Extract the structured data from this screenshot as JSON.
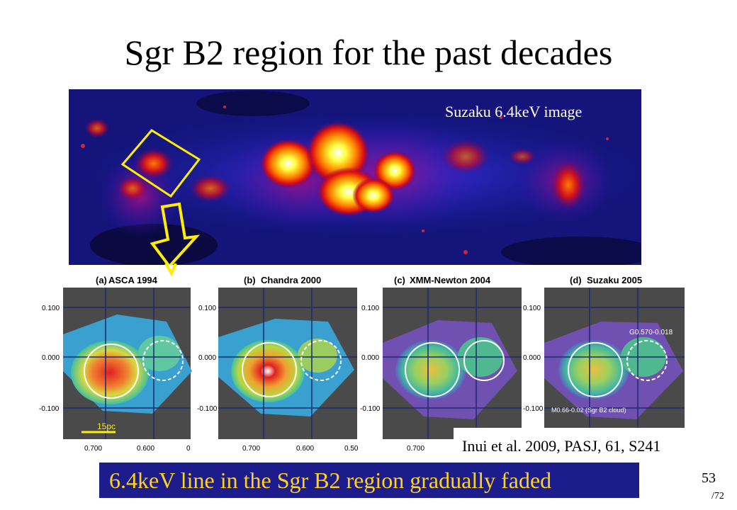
{
  "slide": {
    "title": "Sgr B2 region for the past decades",
    "image_label": "Suzaku 6.4keV image",
    "credit": "Inui et al. 2009, PASJ, 61, S241",
    "conclusion": "6.4keV line in the Sgr B2 region gradually faded",
    "page_number": "53",
    "page_total": "/72"
  },
  "panels": [
    {
      "label": "(a)",
      "mission": "ASCA 1994",
      "yticks": [
        "0.100",
        "0.000",
        "-0.100"
      ],
      "xticks": [
        "0.700",
        "0.600",
        "0"
      ],
      "scalebar": "15pc",
      "source_name": "",
      "cloud_name": ""
    },
    {
      "label": "(b)",
      "mission": "Chandra 2000",
      "yticks": [
        "0.100",
        "0.000",
        "-0.100"
      ],
      "xticks": [
        "0.700",
        "0.600",
        "0.50"
      ],
      "scalebar": "",
      "source_name": "",
      "cloud_name": ""
    },
    {
      "label": "(c)",
      "mission": "XMM-Newton 2004",
      "yticks": [
        "0.100",
        "0.000",
        "-0.100"
      ],
      "xticks": [
        "0.700"
      ],
      "scalebar": "",
      "source_name": "",
      "cloud_name": ""
    },
    {
      "label": "(d)",
      "mission": "Suzaku 2005",
      "yticks": [
        "0.100",
        "0.000",
        "-0.100"
      ],
      "xticks": [],
      "scalebar": "",
      "source_name": "G0.570-0.018",
      "cloud_name": "M0.66-0.02 (Sgr B2 cloud)"
    }
  ],
  "colors": {
    "banner_bg": "#1c1c8c",
    "banner_text": "#ffd21e",
    "highlight": "#ffee00",
    "image_bg": "#14147a"
  }
}
